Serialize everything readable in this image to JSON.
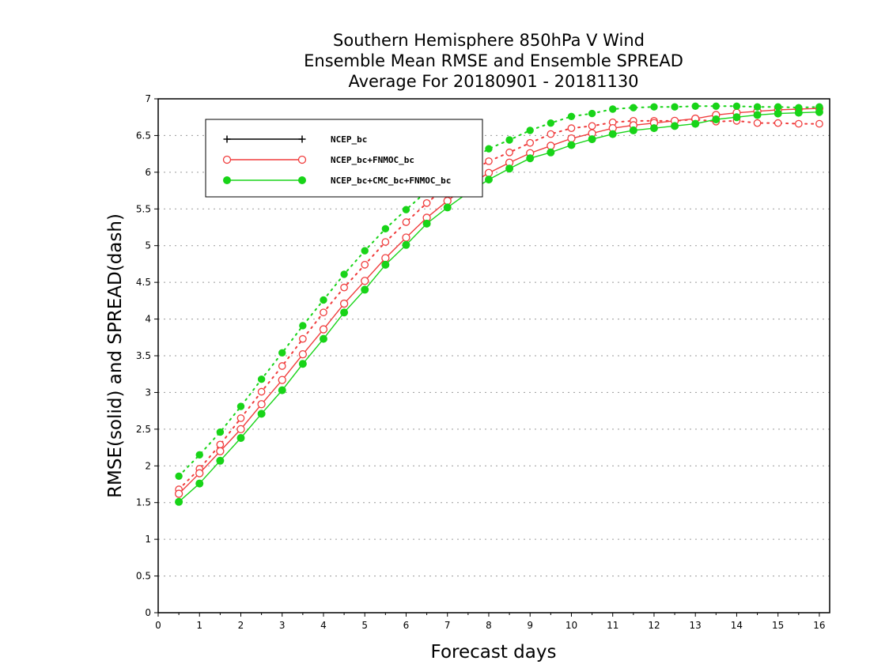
{
  "chart_data": {
    "type": "line",
    "title_lines": [
      "Southern Hemisphere 850hPa V Wind",
      "Ensemble Mean RMSE and Ensemble SPREAD",
      "Average For 20180901 - 20181130"
    ],
    "xlabel": "Forecast days",
    "ylabel": "RMSE(solid) and SPREAD(dash)",
    "xlim": [
      0,
      16.25
    ],
    "ylim": [
      0,
      7
    ],
    "x_ticks": [
      "0",
      "1",
      "2",
      "3",
      "4",
      "5",
      "6",
      "7",
      "8",
      "9",
      "10",
      "11",
      "12",
      "13",
      "14",
      "15",
      "16"
    ],
    "y_ticks": [
      "0",
      "0.5",
      "1",
      "1.5",
      "2",
      "2.5",
      "3",
      "3.5",
      "4",
      "4.5",
      "5",
      "5.5",
      "6",
      "6.5",
      "7"
    ],
    "grid": "dotted horizontal",
    "legend_position": "top-left",
    "x": [
      0.5,
      1,
      1.5,
      2,
      2.5,
      3,
      3.5,
      4,
      4.5,
      5,
      5.5,
      6,
      6.5,
      7,
      7.5,
      8,
      8.5,
      9,
      9.5,
      10,
      10.5,
      11,
      11.5,
      12,
      12.5,
      13,
      13.5,
      14,
      14.5,
      15,
      15.5,
      16
    ],
    "series": [
      {
        "name": "NCEP_bc",
        "color": "#000000",
        "marker": "plus",
        "rmse": [],
        "spread": []
      },
      {
        "name": "NCEP_bc+FNMOC_bc",
        "color": "#f03c3c",
        "marker": "open-circle",
        "rmse": [
          1.62,
          1.9,
          2.2,
          2.5,
          2.84,
          3.17,
          3.52,
          3.86,
          4.21,
          4.52,
          4.83,
          5.11,
          5.38,
          5.61,
          5.82,
          5.99,
          6.13,
          6.26,
          6.36,
          6.46,
          6.53,
          6.6,
          6.64,
          6.67,
          6.7,
          6.73,
          6.78,
          6.81,
          6.83,
          6.85,
          6.86,
          6.87
        ],
        "spread": [
          1.68,
          1.96,
          2.29,
          2.65,
          3.01,
          3.36,
          3.73,
          4.09,
          4.43,
          4.74,
          5.05,
          5.32,
          5.58,
          5.81,
          5.99,
          6.15,
          6.27,
          6.4,
          6.52,
          6.6,
          6.63,
          6.68,
          6.7,
          6.7,
          6.7,
          6.72,
          6.69,
          6.7,
          6.67,
          6.67,
          6.66,
          6.66
        ]
      },
      {
        "name": "NCEP_bc+CMC_bc+FNMOC_bc",
        "color": "#18d418",
        "marker": "filled-circle",
        "rmse": [
          1.51,
          1.76,
          2.07,
          2.38,
          2.71,
          3.03,
          3.39,
          3.73,
          4.09,
          4.4,
          4.74,
          5.01,
          5.3,
          5.52,
          5.72,
          5.9,
          6.05,
          6.19,
          6.27,
          6.37,
          6.45,
          6.52,
          6.57,
          6.6,
          6.63,
          6.66,
          6.72,
          6.75,
          6.78,
          6.8,
          6.81,
          6.82
        ],
        "spread": [
          1.86,
          2.15,
          2.46,
          2.81,
          3.18,
          3.54,
          3.91,
          4.26,
          4.61,
          4.93,
          5.23,
          5.49,
          5.74,
          5.95,
          6.14,
          6.32,
          6.44,
          6.57,
          6.67,
          6.76,
          6.8,
          6.86,
          6.88,
          6.89,
          6.89,
          6.9,
          6.9,
          6.9,
          6.89,
          6.89,
          6.88,
          6.89
        ]
      }
    ]
  }
}
